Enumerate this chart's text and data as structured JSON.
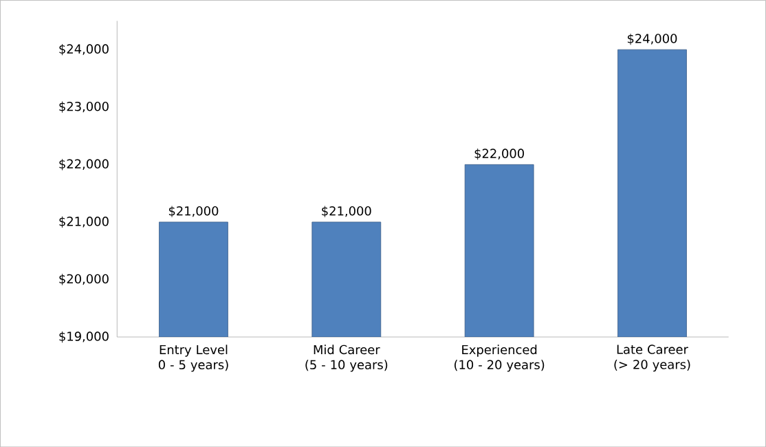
{
  "chart_data": {
    "type": "bar",
    "categories": [
      "Entry Level 0 - 5 years)",
      "Mid Career (5 - 10 years)",
      "Experienced (10 - 20 years)",
      "Late Career (> 20 years)"
    ],
    "values": [
      21000,
      21000,
      22000,
      24000
    ],
    "value_labels": [
      "$21,000",
      "$21,000",
      "$22,000",
      "$24,000"
    ],
    "color": "#4f81bd",
    "ylim": [
      19000,
      24500
    ],
    "yticks": [
      {
        "value": 19000,
        "label": "$19,000"
      },
      {
        "value": 20000,
        "label": "$20,000"
      },
      {
        "value": 21000,
        "label": "$21,000"
      },
      {
        "value": 22000,
        "label": "$22,000"
      },
      {
        "value": 23000,
        "label": "$23,000"
      },
      {
        "value": 24000,
        "label": "$24,000"
      }
    ]
  }
}
